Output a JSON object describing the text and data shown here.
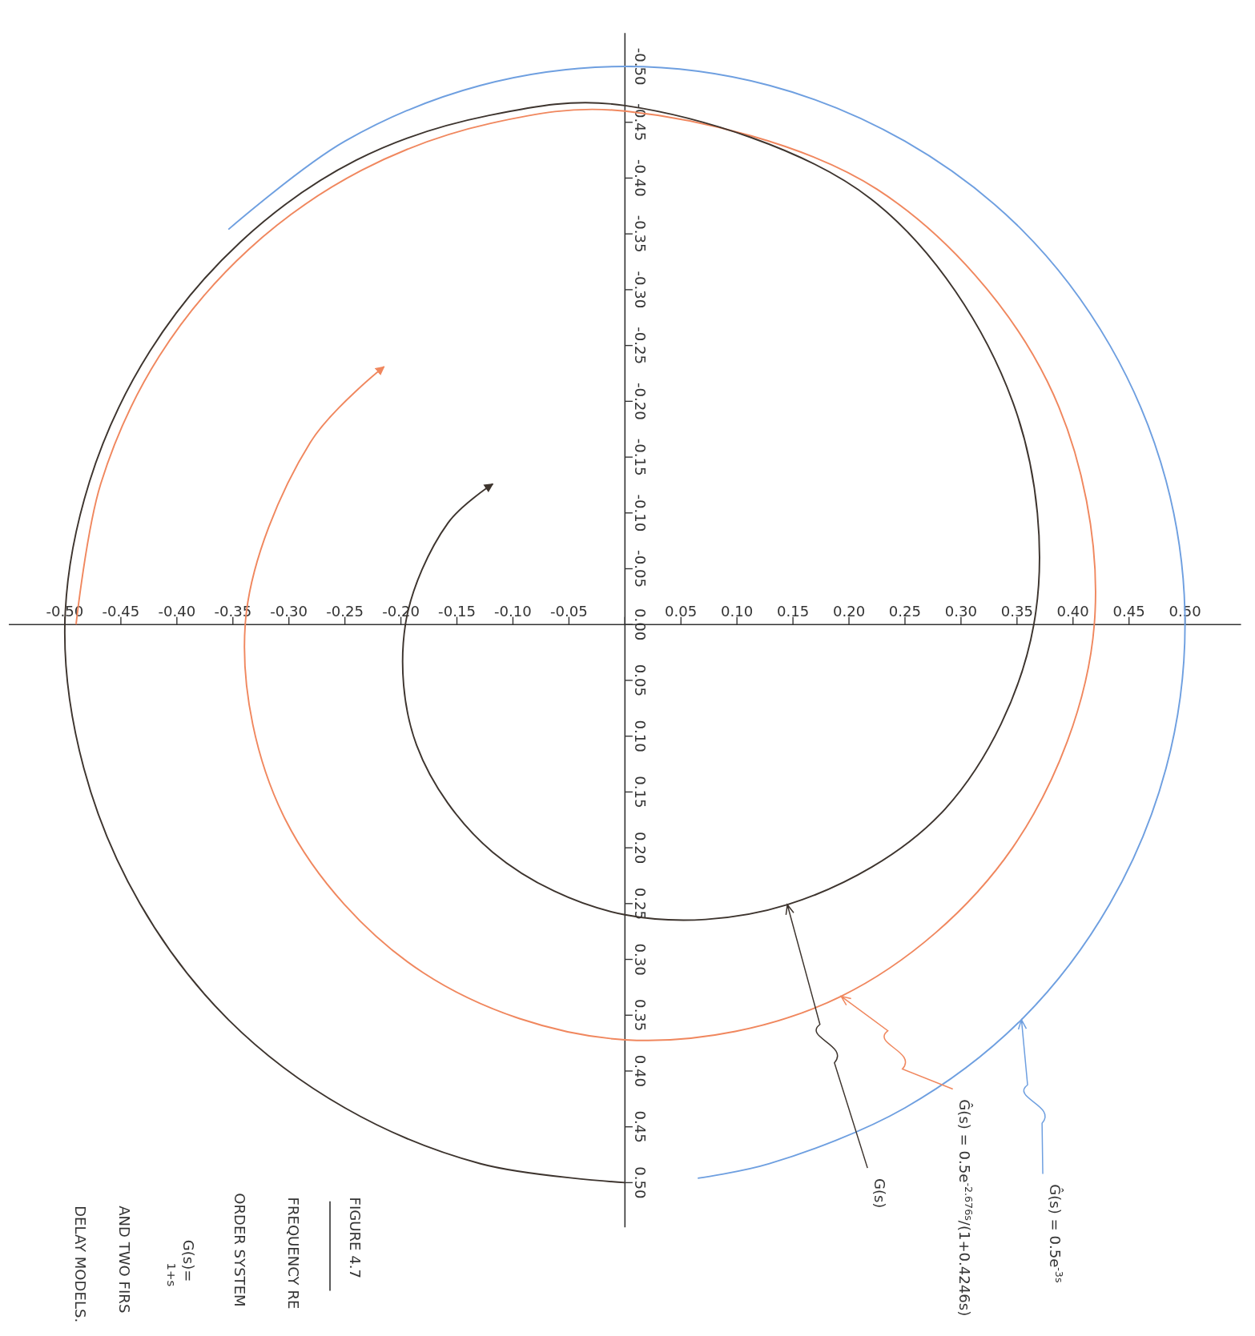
{
  "chart_data": {
    "type": "line",
    "xlim": [
      -0.55,
      0.55
    ],
    "ylim": [
      0.54,
      -0.53
    ],
    "xticks": [
      {
        "value": -0.5,
        "label": "-0.50"
      },
      {
        "value": -0.45,
        "label": "-0.45"
      },
      {
        "value": -0.4,
        "label": "-0.40"
      },
      {
        "value": -0.35,
        "label": "-0.35"
      },
      {
        "value": -0.3,
        "label": "-0.30"
      },
      {
        "value": -0.25,
        "label": "-0.25"
      },
      {
        "value": -0.2,
        "label": "-0.20"
      },
      {
        "value": -0.15,
        "label": "-0.15"
      },
      {
        "value": -0.1,
        "label": "-0.10"
      },
      {
        "value": -0.05,
        "label": "-0.05"
      },
      {
        "value": 0,
        "label": null
      },
      {
        "value": 0.05,
        "label": "0.05"
      },
      {
        "value": 0.1,
        "label": "0.10"
      },
      {
        "value": 0.15,
        "label": "0.15"
      },
      {
        "value": 0.2,
        "label": "0.20"
      },
      {
        "value": 0.25,
        "label": "0.25"
      },
      {
        "value": 0.3,
        "label": "0.30"
      },
      {
        "value": 0.35,
        "label": "0.35"
      },
      {
        "value": 0.4,
        "label": "0.40"
      },
      {
        "value": 0.45,
        "label": "0.45"
      },
      {
        "value": 0.5,
        "label": "0.50"
      }
    ],
    "yticks": [
      {
        "value": -0.5,
        "label": "-0.50"
      },
      {
        "value": -0.45,
        "label": "-0.45"
      },
      {
        "value": -0.4,
        "label": "-0.40"
      },
      {
        "value": -0.35,
        "label": "-0.35"
      },
      {
        "value": -0.3,
        "label": "-0.30"
      },
      {
        "value": -0.25,
        "label": "-0.25"
      },
      {
        "value": -0.2,
        "label": "-0.20"
      },
      {
        "value": -0.15,
        "label": "-0.15"
      },
      {
        "value": -0.1,
        "label": "-0.10"
      },
      {
        "value": -0.05,
        "label": "-0.05"
      },
      {
        "value": 0,
        "label": "0.00"
      },
      {
        "value": 0.05,
        "label": "0.05"
      },
      {
        "value": 0.1,
        "label": "0.10"
      },
      {
        "value": 0.15,
        "label": "0.15"
      },
      {
        "value": 0.2,
        "label": "0.20"
      },
      {
        "value": 0.25,
        "label": "0.25"
      },
      {
        "value": 0.3,
        "label": "0.30"
      },
      {
        "value": 0.35,
        "label": "0.35"
      },
      {
        "value": 0.4,
        "label": "0.40"
      },
      {
        "value": 0.45,
        "label": "0.45"
      },
      {
        "value": 0.5,
        "label": "0.50"
      }
    ],
    "grid": false,
    "marker": "none",
    "line_style": "solid",
    "series": [
      {
        "color": "#3d342e",
        "x": [
          0,
          -0.129,
          -0.25,
          -0.354,
          -0.433,
          -0.483,
          -0.5,
          -0.478,
          -0.424,
          -0.343,
          -0.24,
          -0.122,
          0,
          0.22,
          0.346,
          0.365,
          0.286,
          0.145,
          0,
          -0.118,
          -0.186,
          -0.196,
          -0.158,
          -0.118
        ],
        "values": [
          0.5,
          0.483,
          0.433,
          0.354,
          0.25,
          0.129,
          0,
          -0.128,
          -0.245,
          -0.343,
          -0.416,
          -0.456,
          -0.465,
          -0.381,
          -0.2,
          0,
          0.165,
          0.251,
          0.26,
          0.204,
          0.108,
          0,
          -0.091,
          -0.126
        ]
      },
      {
        "color": "#f0875e",
        "x": [
          -0.49,
          -0.468,
          -0.416,
          -0.336,
          -0.235,
          -0.12,
          0,
          0.225,
          0.377,
          0.419,
          0.346,
          0.193,
          0,
          -0.18,
          -0.303,
          -0.339,
          -0.281,
          -0.215
        ],
        "values": [
          0,
          -0.126,
          -0.24,
          -0.336,
          -0.407,
          -0.449,
          -0.46,
          -0.39,
          -0.218,
          0,
          0.2,
          0.333,
          0.372,
          0.312,
          0.175,
          0,
          -0.163,
          -0.231
        ]
      },
      {
        "color": "#6e9fe0",
        "x": [
          -0.354,
          -0.25,
          -0.129,
          0,
          0.129,
          0.25,
          0.354,
          0.433,
          0.483,
          0.5,
          0.483,
          0.433,
          0.354,
          0.25,
          0.129,
          0.065
        ],
        "values": [
          -0.354,
          -0.433,
          -0.483,
          -0.5,
          -0.483,
          -0.433,
          -0.354,
          -0.25,
          -0.129,
          0,
          0.129,
          0.25,
          0.354,
          0.433,
          0.483,
          0.496
        ]
      }
    ],
    "annotations": [
      {
        "text": "G(s)",
        "x": 0.145,
        "y": 0.251
      },
      {
        "text": "Ĝ(s) = 0.5e$^{-2.676s}$/(1+0.4246s)",
        "x": 0.193,
        "y": 0.333
      },
      {
        "text": "Ĝ(s) = 0.5e$^{-3s}$",
        "x": 0.354,
        "y": 0.354
      },
      "FIGURE 4.7",
      "FREQUENCY RE",
      "ORDER SYSTEM",
      "G(s)=",
      "1+s",
      "AND TWO FIRS",
      "DELAY MODELS."
    ]
  }
}
